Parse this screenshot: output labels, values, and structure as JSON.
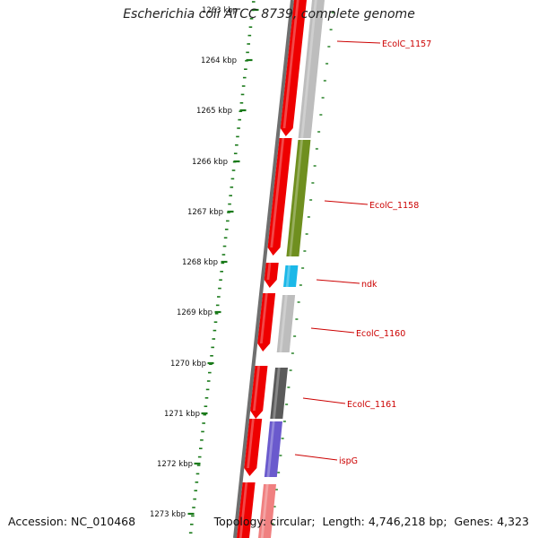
{
  "title": "Escherichia coli ATCC 8739, complete genome",
  "colors": {
    "tick": "#1a7a1a",
    "label_text": "#cc0000",
    "label_line": "#cc0000",
    "backbone": "#6f6f6f",
    "cds_forward": "#ee0000",
    "gene_gray": "#bdbdbd",
    "gene_olive": "#6f8f1f",
    "gene_cyan": "#1bb8e8",
    "gene_dark": "#5a5a5a",
    "gene_purple": "#6a5acd",
    "gene_pink": "#f08080"
  },
  "ruler": {
    "labels": [
      "1263 kbp",
      "1264 kbp",
      "1265 kbp",
      "1266 kbp",
      "1267 kbp",
      "1268 kbp",
      "1269 kbp",
      "1270 kbp",
      "1271 kbp",
      "1272 kbp",
      "1273 kbp"
    ]
  },
  "gene_labels": [
    "EcolC_1157",
    "EcolC_1158",
    "ndk",
    "EcolC_1160",
    "EcolC_1161",
    "ispG"
  ],
  "footer": {
    "accession_label": "Accession:",
    "accession": "NC_010468",
    "topology_label": "Topology:",
    "topology": "circular",
    "length_label": "Length:",
    "length": "4,746,218 bp",
    "genes_label": "Genes:",
    "genes": "4,323"
  }
}
